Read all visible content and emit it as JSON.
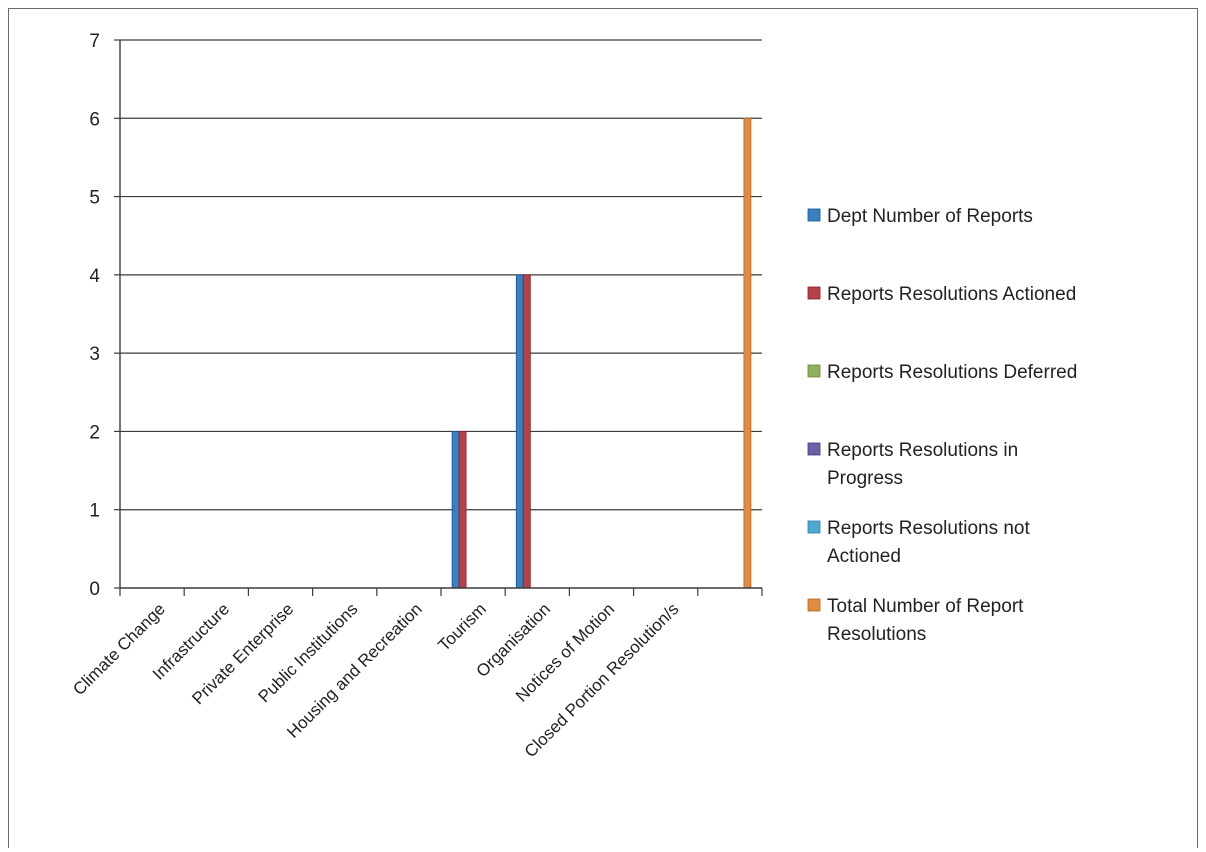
{
  "chart_data": {
    "type": "bar",
    "categories": [
      "Climate Change",
      "Infrastructure",
      "Private Enterprise",
      "Public Institutions",
      "Housing and Recreation",
      "Tourism",
      "Organisation",
      "Notices of Motion",
      "Closed Portion Resolution/s",
      ""
    ],
    "series": [
      {
        "name": "Dept Number of Reports",
        "color": "#3a7fbf",
        "values": [
          0,
          0,
          0,
          0,
          0,
          2,
          4,
          0,
          0,
          0
        ]
      },
      {
        "name": "Reports Resolutions Actioned",
        "color": "#b5444a",
        "values": [
          0,
          0,
          0,
          0,
          0,
          2,
          4,
          0,
          0,
          0
        ]
      },
      {
        "name": "Reports Resolutions Deferred",
        "color": "#8fb05a",
        "values": [
          0,
          0,
          0,
          0,
          0,
          0,
          0,
          0,
          0,
          0
        ]
      },
      {
        "name": "Reports Resolutions in Progress",
        "color": "#6e5fa6",
        "values": [
          0,
          0,
          0,
          0,
          0,
          0,
          0,
          0,
          0,
          0
        ]
      },
      {
        "name": "Reports Resolutions not Actioned",
        "color": "#4fa9cf",
        "values": [
          0,
          0,
          0,
          0,
          0,
          0,
          0,
          0,
          0,
          0
        ]
      },
      {
        "name": "Total Number of Report Resolutions",
        "color": "#e08b3f",
        "values": [
          0,
          0,
          0,
          0,
          0,
          0,
          0,
          0,
          0,
          6
        ]
      }
    ],
    "ylim": [
      0,
      7
    ],
    "yticks": [
      0,
      1,
      2,
      3,
      4,
      5,
      6,
      7
    ],
    "grid": true,
    "legend": "right",
    "title": "",
    "xlabel": "",
    "ylabel": ""
  }
}
